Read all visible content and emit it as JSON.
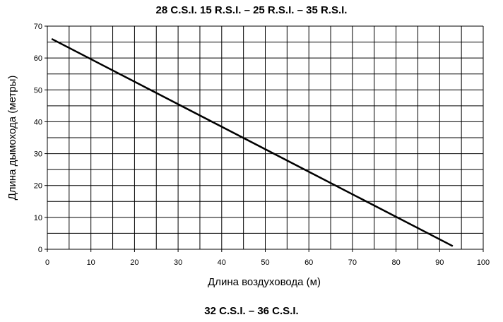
{
  "chart_data": {
    "type": "line",
    "title": "28 C.S.I. 15 R.S.I. – 25 R.S.I. – 35 R.S.I.",
    "subtitle": "32 C.S.I. – 36 C.S.I.",
    "xlabel": "Длина воздуховода (м)",
    "ylabel": "Длина дымохода (метры)",
    "xlim": [
      0,
      100
    ],
    "ylim": [
      0,
      70
    ],
    "x_ticks": [
      0,
      10,
      20,
      30,
      40,
      50,
      60,
      70,
      80,
      90,
      100
    ],
    "y_ticks": [
      0,
      10,
      20,
      30,
      40,
      50,
      60,
      70
    ],
    "x_grid_step": 5,
    "y_grid_step": 5,
    "grid": true,
    "legend": "none",
    "series": [
      {
        "x": [
          1,
          93
        ],
        "y": [
          66,
          1
        ],
        "color": "#000000"
      }
    ]
  }
}
